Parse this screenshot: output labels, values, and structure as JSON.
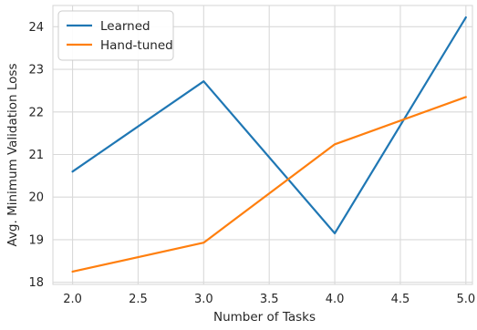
{
  "chart_data": {
    "type": "line",
    "title": "",
    "xlabel": "Number of Tasks",
    "ylabel": "Avg. Minimum Validation Loss",
    "xlim": [
      1.85,
      5.05
    ],
    "ylim": [
      17.95,
      24.5
    ],
    "xticks": [
      2.0,
      2.5,
      3.0,
      3.5,
      4.0,
      4.5,
      5.0
    ],
    "xtick_labels": [
      "2.0",
      "2.5",
      "3.0",
      "3.5",
      "4.0",
      "4.5",
      "5.0"
    ],
    "yticks": [
      18,
      19,
      20,
      21,
      22,
      23,
      24
    ],
    "ytick_labels": [
      "18",
      "19",
      "20",
      "21",
      "22",
      "23",
      "24"
    ],
    "grid": true,
    "legend_position": "top-left",
    "series": [
      {
        "name": "Learned",
        "color": "#1f77b4",
        "x": [
          2,
          3,
          4,
          5
        ],
        "values": [
          20.6,
          22.72,
          19.15,
          24.22
        ]
      },
      {
        "name": "Hand-tuned",
        "color": "#ff7f0e",
        "x": [
          2,
          3,
          4,
          5
        ],
        "values": [
          18.25,
          18.93,
          21.24,
          22.35
        ]
      }
    ]
  }
}
